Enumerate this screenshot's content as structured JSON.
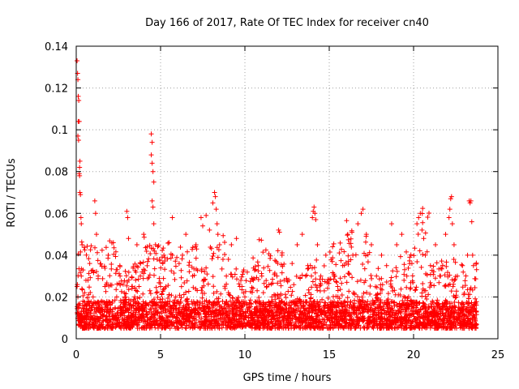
{
  "chart_data": {
    "type": "scatter",
    "title": "Day 166 of 2017, Rate Of TEC Index for receiver cn40",
    "xlabel": "GPS time / hours",
    "ylabel": "ROTI / TECUs",
    "xlim": [
      0,
      25
    ],
    "ylim": [
      0,
      0.14
    ],
    "xticks": [
      0,
      5,
      10,
      15,
      20,
      25
    ],
    "xtick_labels": [
      "0",
      "5",
      "10",
      "15",
      "20",
      "25"
    ],
    "yticks": [
      0,
      0.02,
      0.04,
      0.06,
      0.08,
      0.1,
      0.12,
      0.14
    ],
    "ytick_labels": [
      "0",
      "0.02",
      "0.04",
      "0.06",
      "0.08",
      "0.1",
      "0.12",
      "0.14"
    ],
    "grid": true,
    "marker": "+",
    "color": "#ff0000",
    "series": [
      {
        "name": "ROTI",
        "points": [
          [
            0.05,
            0.133
          ],
          [
            0.08,
            0.127
          ],
          [
            0.1,
            0.124
          ],
          [
            0.12,
            0.116
          ],
          [
            0.15,
            0.114
          ],
          [
            0.12,
            0.104
          ],
          [
            0.18,
            0.104
          ],
          [
            0.1,
            0.097
          ],
          [
            0.14,
            0.095
          ],
          [
            0.22,
            0.085
          ],
          [
            0.2,
            0.082
          ],
          [
            0.18,
            0.079
          ],
          [
            0.2,
            0.078
          ],
          [
            0.22,
            0.07
          ],
          [
            0.25,
            0.069
          ],
          [
            0.28,
            0.058
          ],
          [
            0.3,
            0.055
          ],
          [
            0.35,
            0.045
          ],
          [
            0.05,
            0.025
          ],
          [
            0.1,
            0.02
          ],
          [
            0.15,
            0.015
          ],
          [
            0.2,
            0.01
          ],
          [
            0.3,
            0.03
          ],
          [
            0.4,
            0.018
          ],
          [
            0.5,
            0.022
          ],
          [
            0.6,
            0.012
          ],
          [
            0.7,
            0.028
          ],
          [
            0.8,
            0.036
          ],
          [
            0.9,
            0.015
          ],
          [
            1.0,
            0.02
          ],
          [
            1.1,
            0.066
          ],
          [
            1.15,
            0.06
          ],
          [
            1.2,
            0.05
          ],
          [
            1.3,
            0.03
          ],
          [
            1.5,
            0.018
          ],
          [
            1.7,
            0.025
          ],
          [
            1.9,
            0.04
          ],
          [
            2.0,
            0.012
          ],
          [
            2.2,
            0.046
          ],
          [
            2.4,
            0.02
          ],
          [
            2.6,
            0.03
          ],
          [
            2.8,
            0.015
          ],
          [
            3.0,
            0.061
          ],
          [
            3.05,
            0.058
          ],
          [
            3.1,
            0.048
          ],
          [
            3.3,
            0.025
          ],
          [
            3.5,
            0.018
          ],
          [
            3.6,
            0.045
          ],
          [
            3.8,
            0.03
          ],
          [
            4.0,
            0.05
          ],
          [
            4.2,
            0.044
          ],
          [
            4.45,
            0.098
          ],
          [
            4.5,
            0.094
          ],
          [
            4.45,
            0.088
          ],
          [
            4.5,
            0.084
          ],
          [
            4.55,
            0.08
          ],
          [
            4.6,
            0.075
          ],
          [
            4.5,
            0.066
          ],
          [
            4.55,
            0.063
          ],
          [
            4.6,
            0.055
          ],
          [
            4.7,
            0.045
          ],
          [
            4.8,
            0.038
          ],
          [
            5.0,
            0.025
          ],
          [
            5.2,
            0.04
          ],
          [
            5.5,
            0.046
          ],
          [
            5.7,
            0.058
          ],
          [
            5.9,
            0.02
          ],
          [
            6.1,
            0.036
          ],
          [
            6.3,
            0.04
          ],
          [
            6.5,
            0.05
          ],
          [
            6.7,
            0.015
          ],
          [
            6.9,
            0.03
          ],
          [
            7.1,
            0.045
          ],
          [
            7.4,
            0.058
          ],
          [
            7.5,
            0.054
          ],
          [
            7.7,
            0.059
          ],
          [
            7.9,
            0.052
          ],
          [
            8.1,
            0.065
          ],
          [
            8.2,
            0.07
          ],
          [
            8.25,
            0.068
          ],
          [
            8.3,
            0.062
          ],
          [
            8.35,
            0.055
          ],
          [
            8.4,
            0.05
          ],
          [
            8.5,
            0.045
          ],
          [
            8.7,
            0.038
          ],
          [
            8.9,
            0.03
          ],
          [
            9.2,
            0.045
          ],
          [
            9.5,
            0.048
          ],
          [
            9.7,
            0.025
          ],
          [
            10.0,
            0.02
          ],
          [
            10.2,
            0.015
          ],
          [
            10.5,
            0.028
          ],
          [
            10.8,
            0.035
          ],
          [
            11.0,
            0.03
          ],
          [
            11.3,
            0.025
          ],
          [
            11.6,
            0.02
          ],
          [
            11.9,
            0.03
          ],
          [
            12.0,
            0.052
          ],
          [
            12.05,
            0.051
          ],
          [
            12.2,
            0.04
          ],
          [
            12.5,
            0.028
          ],
          [
            12.8,
            0.036
          ],
          [
            13.1,
            0.045
          ],
          [
            13.4,
            0.05
          ],
          [
            13.6,
            0.03
          ],
          [
            13.8,
            0.022
          ],
          [
            14.0,
            0.058
          ],
          [
            14.05,
            0.061
          ],
          [
            14.1,
            0.063
          ],
          [
            14.15,
            0.06
          ],
          [
            14.2,
            0.057
          ],
          [
            14.3,
            0.045
          ],
          [
            14.5,
            0.03
          ],
          [
            14.8,
            0.04
          ],
          [
            15.2,
            0.044
          ],
          [
            15.5,
            0.025
          ],
          [
            15.8,
            0.035
          ],
          [
            16.1,
            0.05
          ],
          [
            16.4,
            0.04
          ],
          [
            16.7,
            0.055
          ],
          [
            16.9,
            0.06
          ],
          [
            17.0,
            0.062
          ],
          [
            17.2,
            0.05
          ],
          [
            17.5,
            0.045
          ],
          [
            17.8,
            0.03
          ],
          [
            18.1,
            0.04
          ],
          [
            18.4,
            0.035
          ],
          [
            18.7,
            0.055
          ],
          [
            19.0,
            0.045
          ],
          [
            19.3,
            0.05
          ],
          [
            19.6,
            0.03
          ],
          [
            19.9,
            0.036
          ],
          [
            20.2,
            0.055
          ],
          [
            20.3,
            0.058
          ],
          [
            20.4,
            0.06
          ],
          [
            20.5,
            0.052
          ],
          [
            20.6,
            0.048
          ],
          [
            20.7,
            0.04
          ],
          [
            21.0,
            0.035
          ],
          [
            21.3,
            0.045
          ],
          [
            21.6,
            0.03
          ],
          [
            21.9,
            0.05
          ],
          [
            22.1,
            0.058
          ],
          [
            22.15,
            0.062
          ],
          [
            22.2,
            0.067
          ],
          [
            22.25,
            0.068
          ],
          [
            22.3,
            0.055
          ],
          [
            22.4,
            0.045
          ],
          [
            22.6,
            0.03
          ],
          [
            22.9,
            0.035
          ],
          [
            23.2,
            0.04
          ],
          [
            23.3,
            0.066
          ],
          [
            23.35,
            0.065
          ],
          [
            23.4,
            0.066
          ],
          [
            23.45,
            0.056
          ],
          [
            23.5,
            0.04
          ],
          [
            23.55,
            0.035
          ]
        ]
      }
    ]
  }
}
